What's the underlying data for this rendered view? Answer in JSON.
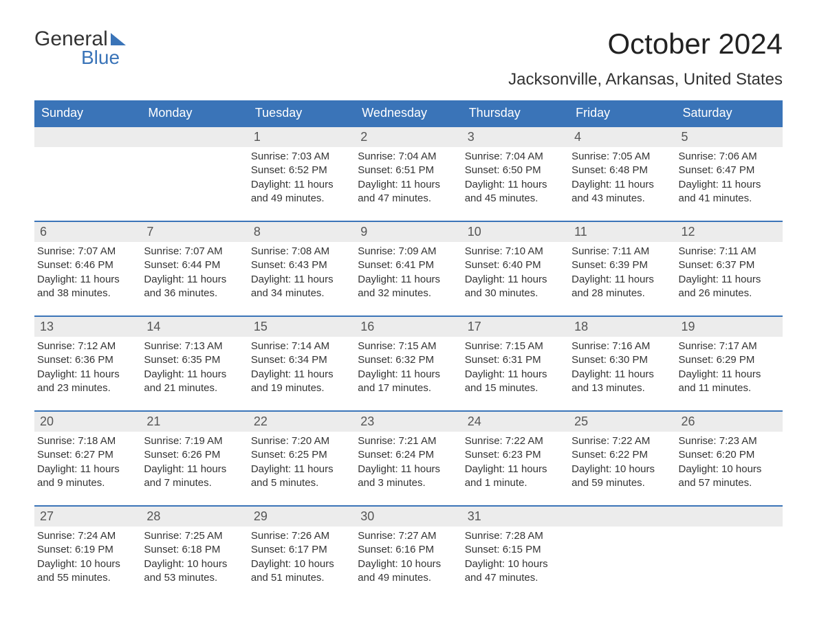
{
  "logo": {
    "word1": "General",
    "word2": "Blue"
  },
  "title": "October 2024",
  "location": "Jacksonville, Arkansas, United States",
  "colors": {
    "header_bg": "#3a74b8",
    "header_text": "#ffffff",
    "daynum_bg": "#ececec",
    "border": "#3a74b8",
    "text": "#333333",
    "background": "#ffffff"
  },
  "day_headers": [
    "Sunday",
    "Monday",
    "Tuesday",
    "Wednesday",
    "Thursday",
    "Friday",
    "Saturday"
  ],
  "weeks": [
    [
      null,
      null,
      {
        "n": "1",
        "sr": "7:03 AM",
        "ss": "6:52 PM",
        "dl": "11 hours and 49 minutes."
      },
      {
        "n": "2",
        "sr": "7:04 AM",
        "ss": "6:51 PM",
        "dl": "11 hours and 47 minutes."
      },
      {
        "n": "3",
        "sr": "7:04 AM",
        "ss": "6:50 PM",
        "dl": "11 hours and 45 minutes."
      },
      {
        "n": "4",
        "sr": "7:05 AM",
        "ss": "6:48 PM",
        "dl": "11 hours and 43 minutes."
      },
      {
        "n": "5",
        "sr": "7:06 AM",
        "ss": "6:47 PM",
        "dl": "11 hours and 41 minutes."
      }
    ],
    [
      {
        "n": "6",
        "sr": "7:07 AM",
        "ss": "6:46 PM",
        "dl": "11 hours and 38 minutes."
      },
      {
        "n": "7",
        "sr": "7:07 AM",
        "ss": "6:44 PM",
        "dl": "11 hours and 36 minutes."
      },
      {
        "n": "8",
        "sr": "7:08 AM",
        "ss": "6:43 PM",
        "dl": "11 hours and 34 minutes."
      },
      {
        "n": "9",
        "sr": "7:09 AM",
        "ss": "6:41 PM",
        "dl": "11 hours and 32 minutes."
      },
      {
        "n": "10",
        "sr": "7:10 AM",
        "ss": "6:40 PM",
        "dl": "11 hours and 30 minutes."
      },
      {
        "n": "11",
        "sr": "7:11 AM",
        "ss": "6:39 PM",
        "dl": "11 hours and 28 minutes."
      },
      {
        "n": "12",
        "sr": "7:11 AM",
        "ss": "6:37 PM",
        "dl": "11 hours and 26 minutes."
      }
    ],
    [
      {
        "n": "13",
        "sr": "7:12 AM",
        "ss": "6:36 PM",
        "dl": "11 hours and 23 minutes."
      },
      {
        "n": "14",
        "sr": "7:13 AM",
        "ss": "6:35 PM",
        "dl": "11 hours and 21 minutes."
      },
      {
        "n": "15",
        "sr": "7:14 AM",
        "ss": "6:34 PM",
        "dl": "11 hours and 19 minutes."
      },
      {
        "n": "16",
        "sr": "7:15 AM",
        "ss": "6:32 PM",
        "dl": "11 hours and 17 minutes."
      },
      {
        "n": "17",
        "sr": "7:15 AM",
        "ss": "6:31 PM",
        "dl": "11 hours and 15 minutes."
      },
      {
        "n": "18",
        "sr": "7:16 AM",
        "ss": "6:30 PM",
        "dl": "11 hours and 13 minutes."
      },
      {
        "n": "19",
        "sr": "7:17 AM",
        "ss": "6:29 PM",
        "dl": "11 hours and 11 minutes."
      }
    ],
    [
      {
        "n": "20",
        "sr": "7:18 AM",
        "ss": "6:27 PM",
        "dl": "11 hours and 9 minutes."
      },
      {
        "n": "21",
        "sr": "7:19 AM",
        "ss": "6:26 PM",
        "dl": "11 hours and 7 minutes."
      },
      {
        "n": "22",
        "sr": "7:20 AM",
        "ss": "6:25 PM",
        "dl": "11 hours and 5 minutes."
      },
      {
        "n": "23",
        "sr": "7:21 AM",
        "ss": "6:24 PM",
        "dl": "11 hours and 3 minutes."
      },
      {
        "n": "24",
        "sr": "7:22 AM",
        "ss": "6:23 PM",
        "dl": "11 hours and 1 minute."
      },
      {
        "n": "25",
        "sr": "7:22 AM",
        "ss": "6:22 PM",
        "dl": "10 hours and 59 minutes."
      },
      {
        "n": "26",
        "sr": "7:23 AM",
        "ss": "6:20 PM",
        "dl": "10 hours and 57 minutes."
      }
    ],
    [
      {
        "n": "27",
        "sr": "7:24 AM",
        "ss": "6:19 PM",
        "dl": "10 hours and 55 minutes."
      },
      {
        "n": "28",
        "sr": "7:25 AM",
        "ss": "6:18 PM",
        "dl": "10 hours and 53 minutes."
      },
      {
        "n": "29",
        "sr": "7:26 AM",
        "ss": "6:17 PM",
        "dl": "10 hours and 51 minutes."
      },
      {
        "n": "30",
        "sr": "7:27 AM",
        "ss": "6:16 PM",
        "dl": "10 hours and 49 minutes."
      },
      {
        "n": "31",
        "sr": "7:28 AM",
        "ss": "6:15 PM",
        "dl": "10 hours and 47 minutes."
      },
      null,
      null
    ]
  ],
  "labels": {
    "sunrise": "Sunrise: ",
    "sunset": "Sunset: ",
    "daylight": "Daylight: "
  }
}
